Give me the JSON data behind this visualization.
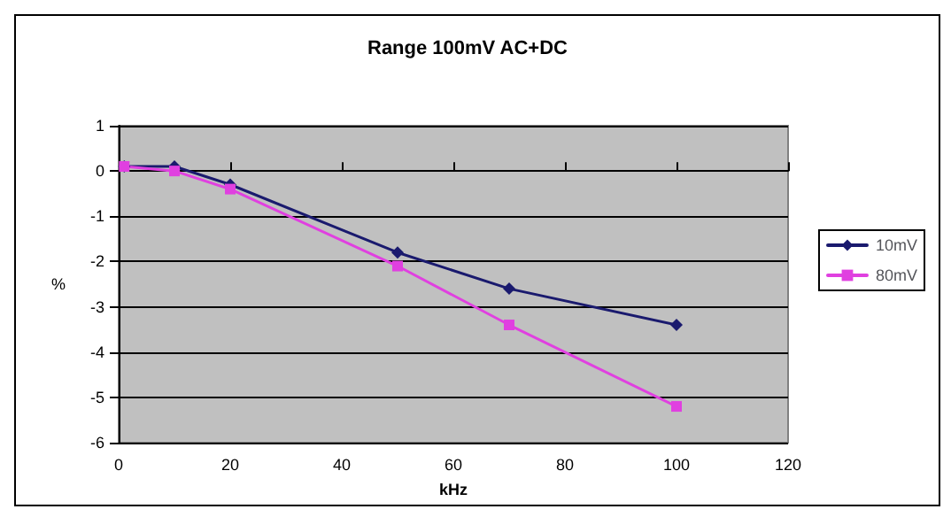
{
  "chart_data": {
    "type": "line",
    "title": "Range 100mV AC+DC",
    "xlabel": "kHz",
    "ylabel": "%",
    "x": [
      1,
      10,
      20,
      50,
      70,
      100
    ],
    "series": [
      {
        "name": "10mV",
        "color": "#1a1a6e",
        "marker": "diamond",
        "values": [
          0.1,
          0.1,
          -0.3,
          -1.8,
          -2.6,
          -3.4
        ]
      },
      {
        "name": "80mV",
        "color": "#e040e0",
        "marker": "square",
        "values": [
          0.1,
          0.0,
          -0.4,
          -2.1,
          -3.4,
          -5.2
        ]
      }
    ],
    "xlim": [
      0,
      120
    ],
    "xticks": [
      0,
      20,
      40,
      60,
      80,
      100,
      120
    ],
    "ylim": [
      -6,
      1
    ],
    "yticks": [
      -6,
      -5,
      -4,
      -3,
      -2,
      -1,
      0,
      1
    ],
    "grid": "y",
    "legend": "right",
    "line_style": "solid"
  }
}
